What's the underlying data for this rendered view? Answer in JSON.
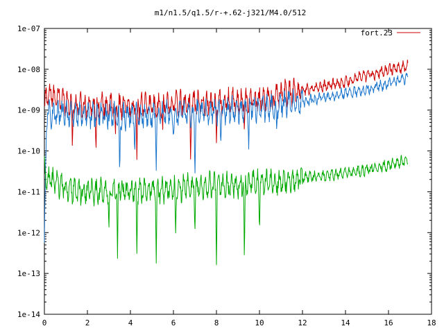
{
  "chart_data": {
    "type": "line",
    "title": "m1/n1.5/q1.5/r-+.62-j321/M4.0/512",
    "xlabel": "",
    "ylabel": "",
    "x_range": [
      0,
      18
    ],
    "y_range": [
      1e-14,
      1e-07
    ],
    "y_scale": "log",
    "grid": false,
    "legend_position": "top-right",
    "x_ticks": [
      0,
      2,
      4,
      6,
      8,
      10,
      12,
      14,
      16,
      18
    ],
    "x_tick_labels": [
      "0",
      "2",
      "4",
      "6",
      "8",
      "10",
      "12",
      "14",
      "16",
      "18"
    ],
    "y_ticks": [
      1e-14,
      1e-13,
      1e-12,
      1e-11,
      1e-10,
      1e-09,
      1e-08,
      1e-07
    ],
    "y_tick_labels": [
      "1e-14",
      "1e-13",
      "1e-12",
      "1e-11",
      "1e-10",
      "1e-09",
      "1e-08",
      "1e-07"
    ],
    "series": [
      {
        "name": "fort.23",
        "color": "#cc0000",
        "x_end": 16.9,
        "trend": [
          [
            0,
            1e-09
          ],
          [
            0.1,
            2.5e-09
          ],
          [
            1.5,
            1.3e-09
          ],
          [
            4,
            1.2e-09
          ],
          [
            6,
            1.4e-09
          ],
          [
            8,
            1.5e-09
          ],
          [
            10,
            1.8e-09
          ],
          [
            12,
            3e-09
          ],
          [
            14,
            5e-09
          ],
          [
            15,
            7e-09
          ],
          [
            16,
            9.5e-09
          ],
          [
            16.9,
            1.2e-08
          ]
        ],
        "dips": [
          [
            1.3,
            1e-10
          ],
          [
            2.4,
            1e-10
          ],
          [
            3.3,
            2e-10
          ],
          [
            4.3,
            6e-11
          ],
          [
            5.5,
            3e-10
          ],
          [
            6.8,
            5e-11
          ],
          [
            8.0,
            1.5e-10
          ],
          [
            9.3,
            3e-10
          ],
          [
            10.6,
            8e-10
          ]
        ]
      },
      {
        "color": "#1a75cc",
        "x_end": 16.9,
        "trend": [
          [
            0,
            5e-13
          ],
          [
            0.1,
            8e-10
          ],
          [
            1.5,
            8e-10
          ],
          [
            4,
            7e-10
          ],
          [
            6,
            8e-10
          ],
          [
            8,
            9e-10
          ],
          [
            10,
            1.1e-09
          ],
          [
            12,
            1.6e-09
          ],
          [
            14,
            2.6e-09
          ],
          [
            15,
            3.2e-09
          ],
          [
            16,
            4.5e-09
          ],
          [
            16.9,
            6e-09
          ]
        ],
        "dips": [
          [
            3.5,
            2e-11
          ],
          [
            4.2,
            8e-11
          ],
          [
            5.2,
            3e-11
          ],
          [
            6.0,
            2e-10
          ],
          [
            7.0,
            2e-11
          ],
          [
            8.2,
            1.5e-10
          ],
          [
            9.5,
            1e-10
          ],
          [
            10.8,
            3e-10
          ]
        ]
      },
      {
        "color": "#00aa00",
        "x_end": 16.9,
        "trend": [
          [
            0,
            5e-11
          ],
          [
            0.1,
            2e-11
          ],
          [
            1.5,
            1e-11
          ],
          [
            3,
            1e-11
          ],
          [
            5,
            1.1e-11
          ],
          [
            7,
            1.3e-11
          ],
          [
            9,
            1.5e-11
          ],
          [
            11,
            1.8e-11
          ],
          [
            12,
            2.2e-11
          ],
          [
            14,
            2.8e-11
          ],
          [
            15,
            3.5e-11
          ],
          [
            16,
            4.5e-11
          ],
          [
            16.9,
            6e-11
          ]
        ],
        "dips": [
          [
            3.0,
            1e-12
          ],
          [
            3.4,
            2e-13
          ],
          [
            4.3,
            3e-13
          ],
          [
            5.2,
            1.5e-13
          ],
          [
            6.1,
            8e-13
          ],
          [
            7.0,
            1e-12
          ],
          [
            8.0,
            1.5e-13
          ],
          [
            9.3,
            1.5e-13
          ],
          [
            10.0,
            1e-12
          ]
        ]
      }
    ]
  }
}
